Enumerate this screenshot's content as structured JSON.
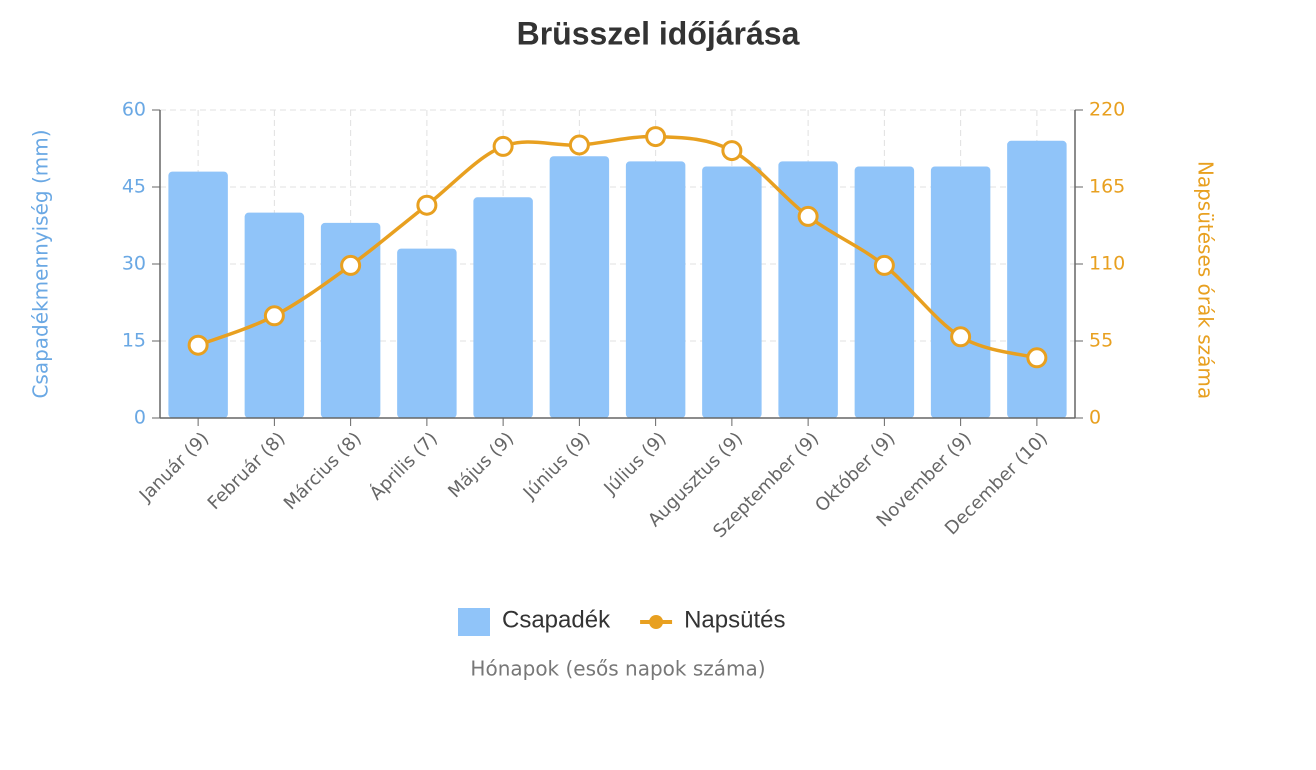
{
  "chart_data": {
    "type": "bar",
    "title": "Brüsszel időjárása",
    "x_label": "Hónapok (esős napok száma)",
    "y_label": "Csapadékmennyiség (mm)",
    "y2_label": "Napsütéses órák száma",
    "categories": [
      "Január (9)",
      "Február (8)",
      "Március (8)",
      "Április (7)",
      "Május (9)",
      "Június (9)",
      "Július (9)",
      "Augusztus (9)",
      "Szeptember (9)",
      "Október (9)",
      "November (9)",
      "December (10)"
    ],
    "series": [
      {
        "name": "Csapadék",
        "type": "bar",
        "color": "#90c4f9",
        "values": [
          48,
          40,
          38,
          33,
          43,
          51,
          50,
          49,
          50,
          49,
          49,
          54
        ]
      },
      {
        "name": "Napsütés",
        "type": "line",
        "axis": "y2",
        "color": "#e8a020",
        "values": [
          52,
          73,
          109,
          152,
          194,
          195,
          201,
          191,
          144,
          109,
          58,
          43
        ]
      }
    ],
    "ylim": [
      0,
      60
    ],
    "yticks": [
      0,
      15,
      30,
      45,
      60
    ],
    "y2lim": [
      0,
      220
    ],
    "y2ticks": [
      0,
      55,
      110,
      165,
      220
    ],
    "grid": true
  }
}
